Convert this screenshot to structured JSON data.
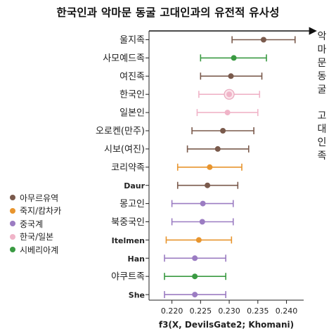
{
  "chart_data": {
    "type": "scatter",
    "title": "한국인과 악마문 동굴 고대인과의 유전적 유사성",
    "xlabel": "f3(X, DevilsGate2; Khomani)",
    "xlim": [
      0.216,
      0.243
    ],
    "xticks": [
      0.22,
      0.225,
      0.23,
      0.235,
      0.24
    ],
    "xtick_labels": [
      "0.220",
      "0.225",
      "0.230",
      "0.235",
      "0.240"
    ],
    "right_label_top": "악마문동굴",
    "right_label_bottom": "고대인족",
    "colors": {
      "amur": "#7a5a4c",
      "jukji": "#e8952e",
      "china": "#9b7cc2",
      "korjp": "#f0b4c8",
      "siberia": "#3a9a42"
    },
    "legend": [
      {
        "label": "아무르유역",
        "group": "amur"
      },
      {
        "label": "죽지/캄차카",
        "group": "jukji"
      },
      {
        "label": "중국계",
        "group": "china"
      },
      {
        "label": "한국/일본",
        "group": "korjp"
      },
      {
        "label": "시베리아계",
        "group": "siberia"
      }
    ],
    "points": [
      {
        "label": "울지족",
        "group": "amur",
        "value": 0.236,
        "low": 0.2305,
        "high": 0.2415
      },
      {
        "label": "사모예드족",
        "group": "siberia",
        "value": 0.2308,
        "low": 0.225,
        "high": 0.2365
      },
      {
        "label": "여진족",
        "group": "amur",
        "value": 0.2303,
        "low": 0.225,
        "high": 0.2357
      },
      {
        "label": "한국인",
        "group": "korjp",
        "value": 0.23,
        "low": 0.2247,
        "high": 0.2353
      },
      {
        "label": "일본인",
        "group": "korjp",
        "value": 0.2297,
        "low": 0.2244,
        "high": 0.235
      },
      {
        "label": "오로켄(만주)",
        "group": "amur",
        "value": 0.2289,
        "low": 0.2235,
        "high": 0.2343
      },
      {
        "label": "시보(여진)",
        "group": "amur",
        "value": 0.228,
        "low": 0.2227,
        "high": 0.2334
      },
      {
        "label": "코리약족",
        "group": "jukji",
        "value": 0.2266,
        "low": 0.221,
        "high": 0.2322
      },
      {
        "label": "Daur",
        "group": "amur",
        "value": 0.2262,
        "low": 0.221,
        "high": 0.2315
      },
      {
        "label": "몽고인",
        "group": "china",
        "value": 0.2254,
        "low": 0.22,
        "high": 0.2307
      },
      {
        "label": "북중국인",
        "group": "china",
        "value": 0.2253,
        "low": 0.22,
        "high": 0.2307
      },
      {
        "label": "Itelmen",
        "group": "jukji",
        "value": 0.2247,
        "low": 0.219,
        "high": 0.2304
      },
      {
        "label": "Han",
        "group": "china",
        "value": 0.224,
        "low": 0.2187,
        "high": 0.2294
      },
      {
        "label": "야쿠트족",
        "group": "siberia",
        "value": 0.224,
        "low": 0.2187,
        "high": 0.2294
      },
      {
        "label": "She",
        "group": "china",
        "value": 0.224,
        "low": 0.2187,
        "high": 0.2294
      }
    ]
  }
}
